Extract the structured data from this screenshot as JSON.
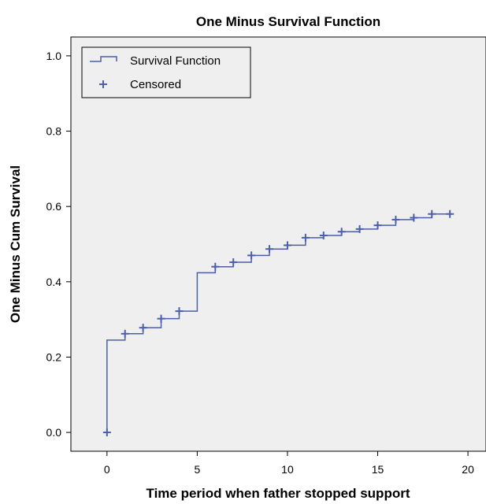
{
  "chart_data": {
    "type": "line",
    "title": "One Minus Survival Function",
    "xlabel": "Time period when father stopped support",
    "ylabel": "One Minus Cum Survival",
    "xlim": [
      -2,
      21
    ],
    "ylim": [
      -0.05,
      1.05
    ],
    "xticks": [
      0,
      5,
      10,
      15,
      20
    ],
    "yticks": [
      0.0,
      0.2,
      0.4,
      0.6,
      0.8,
      1.0
    ],
    "xtick_labels": [
      "0",
      "5",
      "10",
      "15",
      "20"
    ],
    "ytick_labels": [
      "0.0",
      "0.2",
      "0.4",
      "0.6",
      "0.8",
      "1.0"
    ],
    "grid": false,
    "legend_position": "top-left",
    "legend": [
      "Survival Function",
      "Censored"
    ],
    "series": [
      {
        "name": "Survival Function",
        "style": "step",
        "x": [
          0,
          1,
          2,
          3,
          4,
          5,
          6,
          7,
          8,
          9,
          10,
          11,
          12,
          13,
          14,
          15,
          16,
          17,
          18,
          19
        ],
        "y": [
          0.245,
          0.262,
          0.278,
          0.302,
          0.322,
          0.424,
          0.44,
          0.452,
          0.47,
          0.487,
          0.497,
          0.517,
          0.523,
          0.533,
          0.54,
          0.55,
          0.565,
          0.57,
          0.58,
          0.58
        ]
      },
      {
        "name": "Censored",
        "style": "markers",
        "x": [
          0,
          1,
          2,
          3,
          4,
          6,
          7,
          8,
          9,
          10,
          11,
          12,
          13,
          14,
          15,
          16,
          17,
          18,
          19
        ],
        "y": [
          0.0,
          0.262,
          0.278,
          0.302,
          0.322,
          0.44,
          0.452,
          0.47,
          0.487,
          0.497,
          0.517,
          0.523,
          0.533,
          0.54,
          0.55,
          0.565,
          0.57,
          0.58,
          0.58
        ]
      }
    ],
    "colors": {
      "series": "#4a5fa6",
      "plot_background": "#efefef",
      "frame": "#000000"
    }
  }
}
